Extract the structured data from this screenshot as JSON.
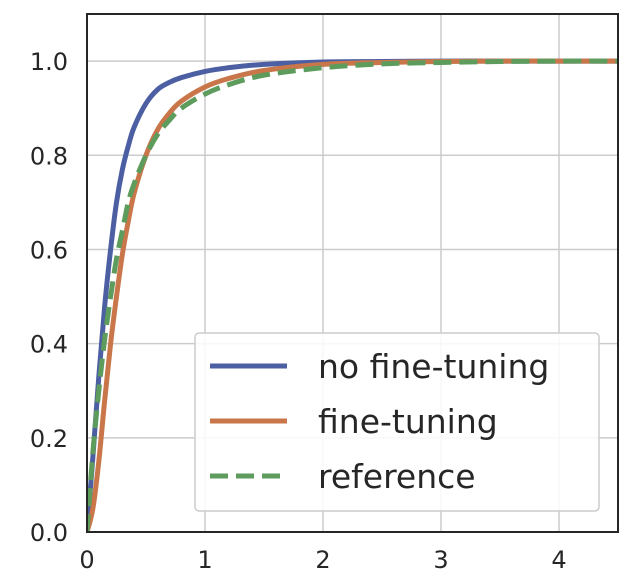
{
  "chart_data": {
    "type": "line",
    "title": "",
    "xlabel": "",
    "ylabel": "",
    "xlim": [
      0,
      4.5
    ],
    "ylim": [
      0,
      1.1
    ],
    "grid": true,
    "legend_position": "lower-right",
    "x_ticks": [
      "0",
      "1",
      "2",
      "3",
      "4"
    ],
    "y_ticks": [
      "0.0",
      "0.2",
      "0.4",
      "0.6",
      "0.8",
      "1.0"
    ],
    "x": [
      0,
      0.05,
      0.1,
      0.15,
      0.2,
      0.25,
      0.3,
      0.35,
      0.4,
      0.5,
      0.6,
      0.7,
      0.8,
      1.0,
      1.2,
      1.5,
      2.0,
      2.5,
      3.0,
      3.5,
      4.0,
      4.5
    ],
    "series": [
      {
        "name": "no fine-tuning",
        "color": "#4c5fa3",
        "dash": "solid",
        "values": [
          0,
          0.16,
          0.33,
          0.48,
          0.6,
          0.7,
          0.77,
          0.82,
          0.86,
          0.91,
          0.94,
          0.955,
          0.965,
          0.978,
          0.986,
          0.993,
          0.998,
          0.999,
          1.0,
          1.0,
          1.0,
          1.0
        ]
      },
      {
        "name": "fine-tuning",
        "color": "#c8764a",
        "dash": "solid",
        "values": [
          0,
          0.05,
          0.15,
          0.28,
          0.4,
          0.5,
          0.59,
          0.66,
          0.72,
          0.8,
          0.855,
          0.89,
          0.915,
          0.945,
          0.963,
          0.98,
          0.993,
          0.997,
          0.999,
          1.0,
          1.0,
          1.0
        ]
      },
      {
        "name": "reference",
        "color": "#5d9c5d",
        "dash": "dashed",
        "values": [
          0,
          0.17,
          0.3,
          0.41,
          0.5,
          0.58,
          0.64,
          0.7,
          0.74,
          0.8,
          0.845,
          0.875,
          0.9,
          0.93,
          0.95,
          0.97,
          0.986,
          0.994,
          0.997,
          0.999,
          1.0,
          1.0
        ]
      }
    ]
  }
}
